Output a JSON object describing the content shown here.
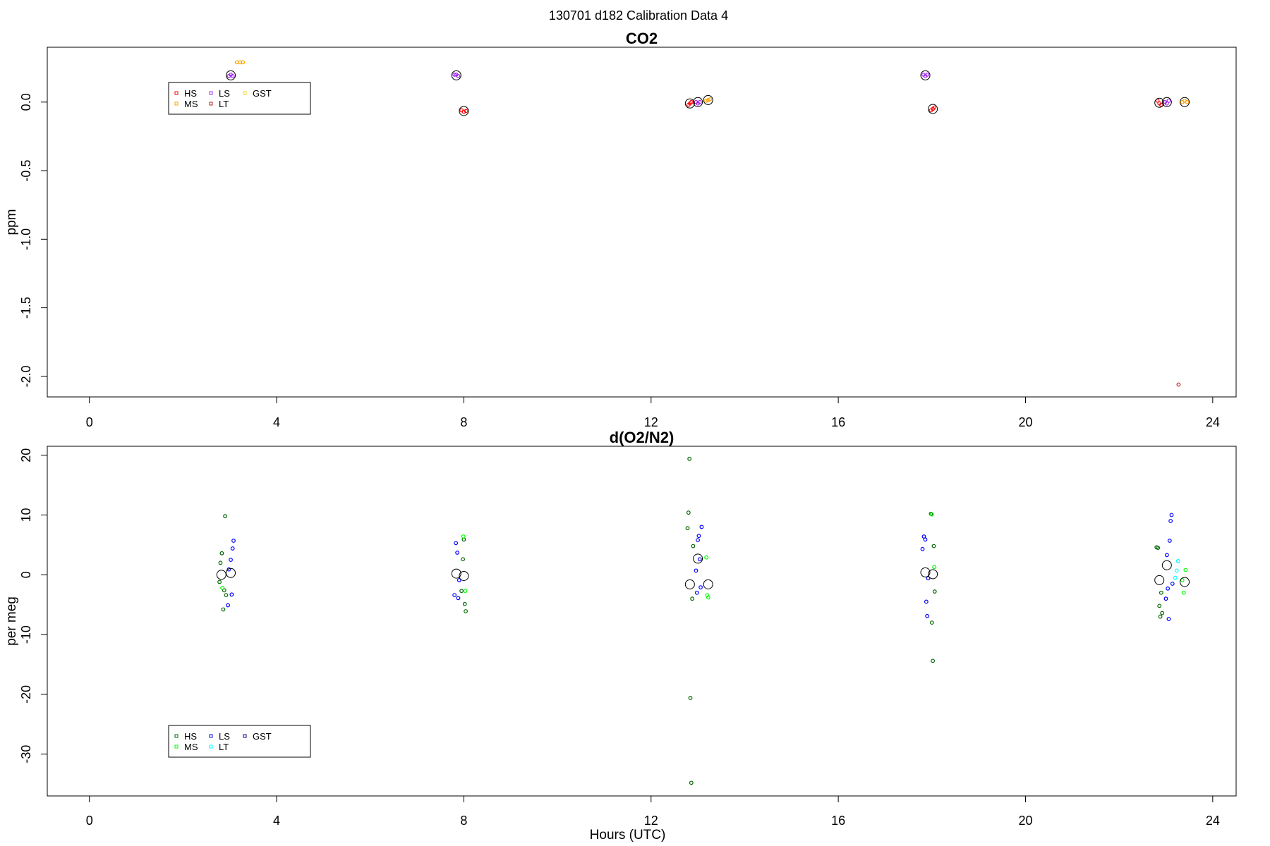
{
  "figure": {
    "title": "130701   d182   Calibration Data 4"
  },
  "chart_data": [
    {
      "type": "scatter",
      "title": "CO2",
      "xlabel": "",
      "ylabel": "ppm",
      "xlim": [
        -0.9,
        24.5
      ],
      "ylim": [
        -2.15,
        0.4
      ],
      "xticks": [
        0,
        4,
        8,
        12,
        16,
        20,
        24
      ],
      "yticks": [
        0.0,
        -0.5,
        -1.0,
        -1.5,
        -2.0
      ],
      "ytick_labels": [
        "0.0",
        "-0.5",
        "-1.0",
        "-1.5",
        "-2.0"
      ],
      "grid": false,
      "legend_position": "top-left",
      "legend_entries": [
        {
          "label": "HS",
          "color": "#ff0000"
        },
        {
          "label": "LS",
          "color": "#a020f0"
        },
        {
          "label": "GST",
          "color": "#ffd700"
        },
        {
          "label": "MS",
          "color": "#ffa500"
        },
        {
          "label": "LT",
          "color": "#b22222"
        }
      ],
      "series": [
        {
          "name": "HS",
          "color": "#ff0000",
          "points": [
            [
              7.95,
              -0.06
            ],
            [
              8.0,
              -0.07
            ],
            [
              8.05,
              -0.065
            ],
            [
              12.8,
              -0.02
            ],
            [
              12.83,
              -0.01
            ],
            [
              12.86,
              0.0
            ],
            [
              17.98,
              -0.06
            ],
            [
              18.02,
              -0.05
            ],
            [
              18.05,
              -0.04
            ],
            [
              22.82,
              0.01
            ],
            [
              22.86,
              -0.01
            ],
            [
              22.9,
              -0.02
            ]
          ]
        },
        {
          "name": "MS",
          "color": "#ffa500",
          "points": [
            [
              3.15,
              0.29
            ],
            [
              3.22,
              0.29
            ],
            [
              3.28,
              0.29
            ],
            [
              13.18,
              0.01
            ],
            [
              13.22,
              0.015
            ],
            [
              13.26,
              0.02
            ],
            [
              23.35,
              0.0
            ],
            [
              23.4,
              0.01
            ],
            [
              23.45,
              0.0
            ]
          ]
        },
        {
          "name": "LS",
          "color": "#a020f0",
          "points": [
            [
              2.98,
              0.19
            ],
            [
              3.02,
              0.2
            ],
            [
              3.06,
              0.19
            ],
            [
              7.8,
              0.2
            ],
            [
              7.84,
              0.2
            ],
            [
              7.88,
              0.19
            ],
            [
              12.96,
              0.0
            ],
            [
              13.0,
              -0.01
            ],
            [
              13.04,
              0.0
            ],
            [
              17.82,
              0.2
            ],
            [
              17.86,
              0.19
            ],
            [
              17.9,
              0.2
            ],
            [
              22.98,
              0.0
            ],
            [
              23.02,
              -0.01
            ],
            [
              23.06,
              0.01
            ]
          ]
        },
        {
          "name": "LT",
          "color": "#b22222",
          "points": [
            [
              23.27,
              -2.06
            ]
          ]
        },
        {
          "name": "GST",
          "color": "#ffd700",
          "points": []
        }
      ],
      "means": [
        [
          3.02,
          0.195
        ],
        [
          7.84,
          0.195
        ],
        [
          8.0,
          -0.065
        ],
        [
          12.83,
          -0.01
        ],
        [
          13.0,
          0.0
        ],
        [
          13.22,
          0.015
        ],
        [
          17.86,
          0.195
        ],
        [
          18.02,
          -0.05
        ],
        [
          22.86,
          -0.005
        ],
        [
          23.02,
          0.0
        ],
        [
          23.4,
          0.0
        ]
      ]
    },
    {
      "type": "scatter",
      "title": "d(O2/N2)",
      "xlabel": "Hours (UTC)",
      "ylabel": "per meg",
      "xlim": [
        -0.9,
        24.5
      ],
      "ylim": [
        -37,
        21.5
      ],
      "xticks": [
        0,
        4,
        8,
        12,
        16,
        20,
        24
      ],
      "yticks": [
        20,
        10,
        0,
        -10,
        -20,
        -30
      ],
      "ytick_labels": [
        "20",
        "10",
        "0",
        "-10",
        "-20",
        "-30"
      ],
      "grid": false,
      "legend_position": "bottom-left",
      "legend_entries": [
        {
          "label": "HS",
          "color": "#006400"
        },
        {
          "label": "LS",
          "color": "#0000ff"
        },
        {
          "label": "GST",
          "color": "#00008b"
        },
        {
          "label": "MS",
          "color": "#00ff00"
        },
        {
          "label": "LT",
          "color": "#00ffff"
        }
      ],
      "series": [
        {
          "name": "HS",
          "color": "#006400",
          "points": [
            [
              2.78,
              -1.2
            ],
            [
              2.8,
              2.0
            ],
            [
              2.83,
              3.6
            ],
            [
              2.86,
              -5.8
            ],
            [
              2.88,
              -2.6
            ],
            [
              2.9,
              9.8
            ],
            [
              2.92,
              -3.4
            ],
            [
              7.95,
              -2.7
            ],
            [
              7.98,
              2.6
            ],
            [
              8.0,
              5.9
            ],
            [
              8.02,
              -4.9
            ],
            [
              8.04,
              -6.1
            ],
            [
              12.78,
              7.8
            ],
            [
              12.8,
              10.4
            ],
            [
              12.82,
              19.4
            ],
            [
              12.84,
              -20.6
            ],
            [
              12.86,
              -34.8
            ],
            [
              12.88,
              -4.0
            ],
            [
              12.9,
              4.8
            ],
            [
              17.98,
              10.2
            ],
            [
              18.0,
              -8.0
            ],
            [
              18.02,
              -14.4
            ],
            [
              18.04,
              4.8
            ],
            [
              18.06,
              -2.8
            ],
            [
              22.8,
              4.6
            ],
            [
              22.83,
              4.5
            ],
            [
              22.86,
              -5.2
            ],
            [
              22.88,
              -7.0
            ],
            [
              22.9,
              -3.0
            ],
            [
              22.92,
              -6.4
            ]
          ]
        },
        {
          "name": "MS",
          "color": "#00ff00",
          "points": [
            [
              2.84,
              -2.2
            ],
            [
              7.99,
              6.4
            ],
            [
              8.03,
              -2.7
            ],
            [
              13.18,
              2.9
            ],
            [
              13.2,
              -3.4
            ],
            [
              13.22,
              -3.8
            ],
            [
              18.0,
              10.1
            ],
            [
              18.05,
              1.3
            ],
            [
              23.35,
              -0.9
            ],
            [
              23.38,
              -3.0
            ],
            [
              23.42,
              0.8
            ]
          ]
        },
        {
          "name": "LS",
          "color": "#0000ff",
          "points": [
            [
              2.96,
              -5.1
            ],
            [
              2.98,
              0.9
            ],
            [
              3.02,
              2.5
            ],
            [
              3.04,
              -3.3
            ],
            [
              3.06,
              4.4
            ],
            [
              3.08,
              5.7
            ],
            [
              7.8,
              -3.4
            ],
            [
              7.83,
              5.3
            ],
            [
              7.86,
              3.7
            ],
            [
              7.88,
              -3.9
            ],
            [
              7.9,
              -0.9
            ],
            [
              12.96,
              0.7
            ],
            [
              12.98,
              -3.0
            ],
            [
              13.0,
              5.8
            ],
            [
              13.02,
              6.5
            ],
            [
              13.04,
              2.6
            ],
            [
              13.06,
              -2.1
            ],
            [
              13.08,
              8.0
            ],
            [
              17.8,
              4.3
            ],
            [
              17.83,
              6.4
            ],
            [
              17.86,
              5.9
            ],
            [
              17.88,
              -4.5
            ],
            [
              17.9,
              -6.9
            ],
            [
              17.92,
              -0.6
            ],
            [
              23.0,
              -4.0
            ],
            [
              23.02,
              3.3
            ],
            [
              23.04,
              -2.3
            ],
            [
              23.06,
              -7.4
            ],
            [
              23.08,
              5.7
            ],
            [
              23.1,
              9.0
            ],
            [
              23.12,
              10.0
            ],
            [
              23.14,
              -1.5
            ]
          ]
        },
        {
          "name": "LT",
          "color": "#00ffff",
          "points": [
            [
              23.2,
              -0.5
            ],
            [
              23.23,
              0.7
            ],
            [
              23.26,
              2.3
            ]
          ]
        },
        {
          "name": "GST",
          "color": "#00008b",
          "points": []
        }
      ],
      "means": [
        [
          2.82,
          0.0
        ],
        [
          3.02,
          0.3
        ],
        [
          7.84,
          0.2
        ],
        [
          8.0,
          -0.2
        ],
        [
          12.83,
          -1.6
        ],
        [
          13.0,
          2.7
        ],
        [
          13.22,
          -1.6
        ],
        [
          17.86,
          0.4
        ],
        [
          18.02,
          0.1
        ],
        [
          22.86,
          -0.9
        ],
        [
          23.02,
          1.6
        ],
        [
          23.4,
          -1.2
        ]
      ]
    }
  ]
}
